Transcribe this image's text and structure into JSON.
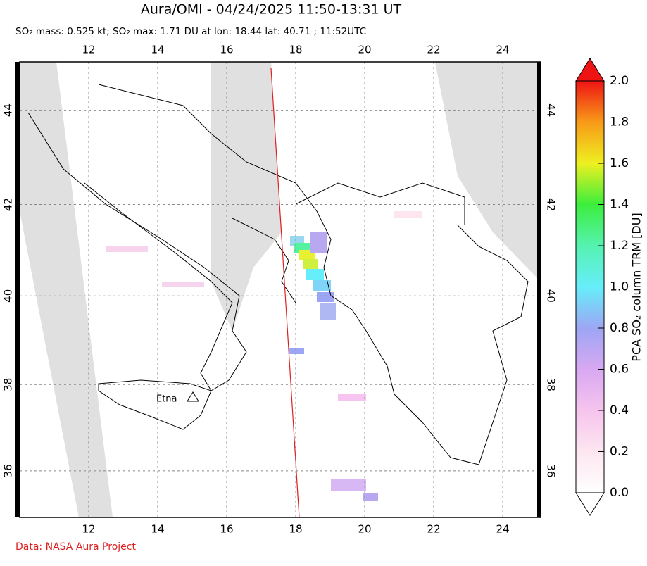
{
  "map": {
    "title": "Aura/OMI - 04/24/2025 11:50-13:31 UT",
    "subtitle": "SO₂ mass: 0.525 kt; SO₂ max: 1.71 DU at lon: 18.44 lat: 40.71 ; 11:52UTC",
    "xlim": [
      10,
      25.1
    ],
    "ylim": [
      34.9,
      45
    ],
    "xticks": [
      12,
      14,
      16,
      18,
      20,
      22,
      24
    ],
    "yticks": [
      36,
      38,
      40,
      42,
      44
    ],
    "annotation": "Etna",
    "colorbar": {
      "label": "PCA SO₂ column TRM [DU]",
      "lim": [
        0,
        2
      ],
      "ticks": [
        {
          "value": 0,
          "label": "0.0"
        },
        0.2,
        0.4,
        0.6,
        0.8,
        {
          "value": 1,
          "label": "1.0"
        },
        1.2,
        1.4,
        1.6,
        1.8,
        {
          "value": 2,
          "label": "2.0"
        }
      ]
    },
    "credit": "Data: NASA Aura Project"
  }
}
